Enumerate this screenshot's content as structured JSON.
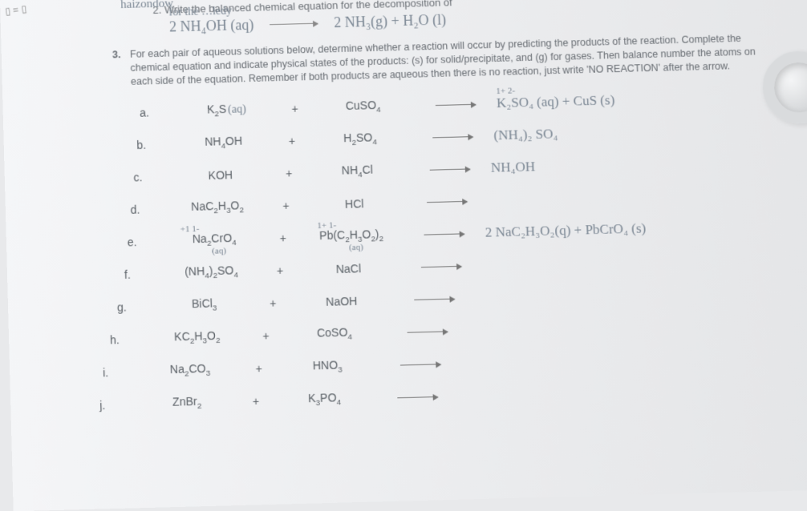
{
  "left_marks": "▯ = ▯",
  "q2": {
    "hw_top": "haizondow",
    "hw_top2": "for the  …ledy",
    "printed_prefix": "2.   Write the balanced chemical equation for the decomposition of",
    "hw_eq_left": "2 NH₄OH (aq)",
    "hw_eq_right": "2 NH₃(g)  +  H₂O (l)"
  },
  "q3": {
    "num": "3.",
    "text": "For each pair of aqueous solutions below, determine whether a reaction will occur by predicting the products of the reaction. Complete the chemical equation and indicate physical states of the products: (s) for solid/precipitate, and (g) for gases. Then balance number the atoms on each side of the equation. Remember if both products are aqueous then there is no reaction, just write 'NO REACTION' after the arrow."
  },
  "rows": [
    {
      "lett": "a.",
      "r1": "K₂S",
      "r1_hw_annot": "(aq)",
      "r2": "CuSO₄",
      "prod_hw": "K₂SO₄ (aq)  +  CuS (s)",
      "prod_annot_top": "1+        2-",
      "prod_strike": true
    },
    {
      "lett": "b.",
      "r1": "NH₄OH",
      "r2": "H₂SO₄",
      "prod_hw": "(NH₄)₂ SO₄"
    },
    {
      "lett": "c.",
      "r1": "KOH",
      "r2": "NH₄Cl",
      "prod_hw": "NH₄OH"
    },
    {
      "lett": "d.",
      "r1": "NaC₂H₃O₂",
      "r2": "HCl",
      "prod_hw": ""
    },
    {
      "lett": "e.",
      "r1": "Na₂CrO₄",
      "r1_hw_annot2": "(aq)",
      "r1_top_annot": "+1   1-",
      "r2": "Pb(C₂H₃O₂)₂",
      "r2_top_annot": "1+    1-",
      "r2_hw_annot": "(aq)",
      "prod_hw": "2 NaC₂H₃O₂(q) + PbCrO₄ (s)"
    },
    {
      "lett": "f.",
      "r1": "(NH₄)₂SO₄",
      "r2": "NaCl",
      "prod_hw": ""
    },
    {
      "lett": "g.",
      "r1": "BiCl₃",
      "r2": "NaOH",
      "prod_hw": ""
    },
    {
      "lett": "h.",
      "r1": "KC₂H₃O₂",
      "r2": "CoSO₄",
      "prod_hw": ""
    },
    {
      "lett": "i.",
      "r1": "Na₂CO₃",
      "r2": "HNO₃",
      "prod_hw": ""
    },
    {
      "lett": "j.",
      "r1": "ZnBr₂",
      "r2": "K₃PO₄",
      "prod_hw": ""
    }
  ],
  "plus": "+"
}
